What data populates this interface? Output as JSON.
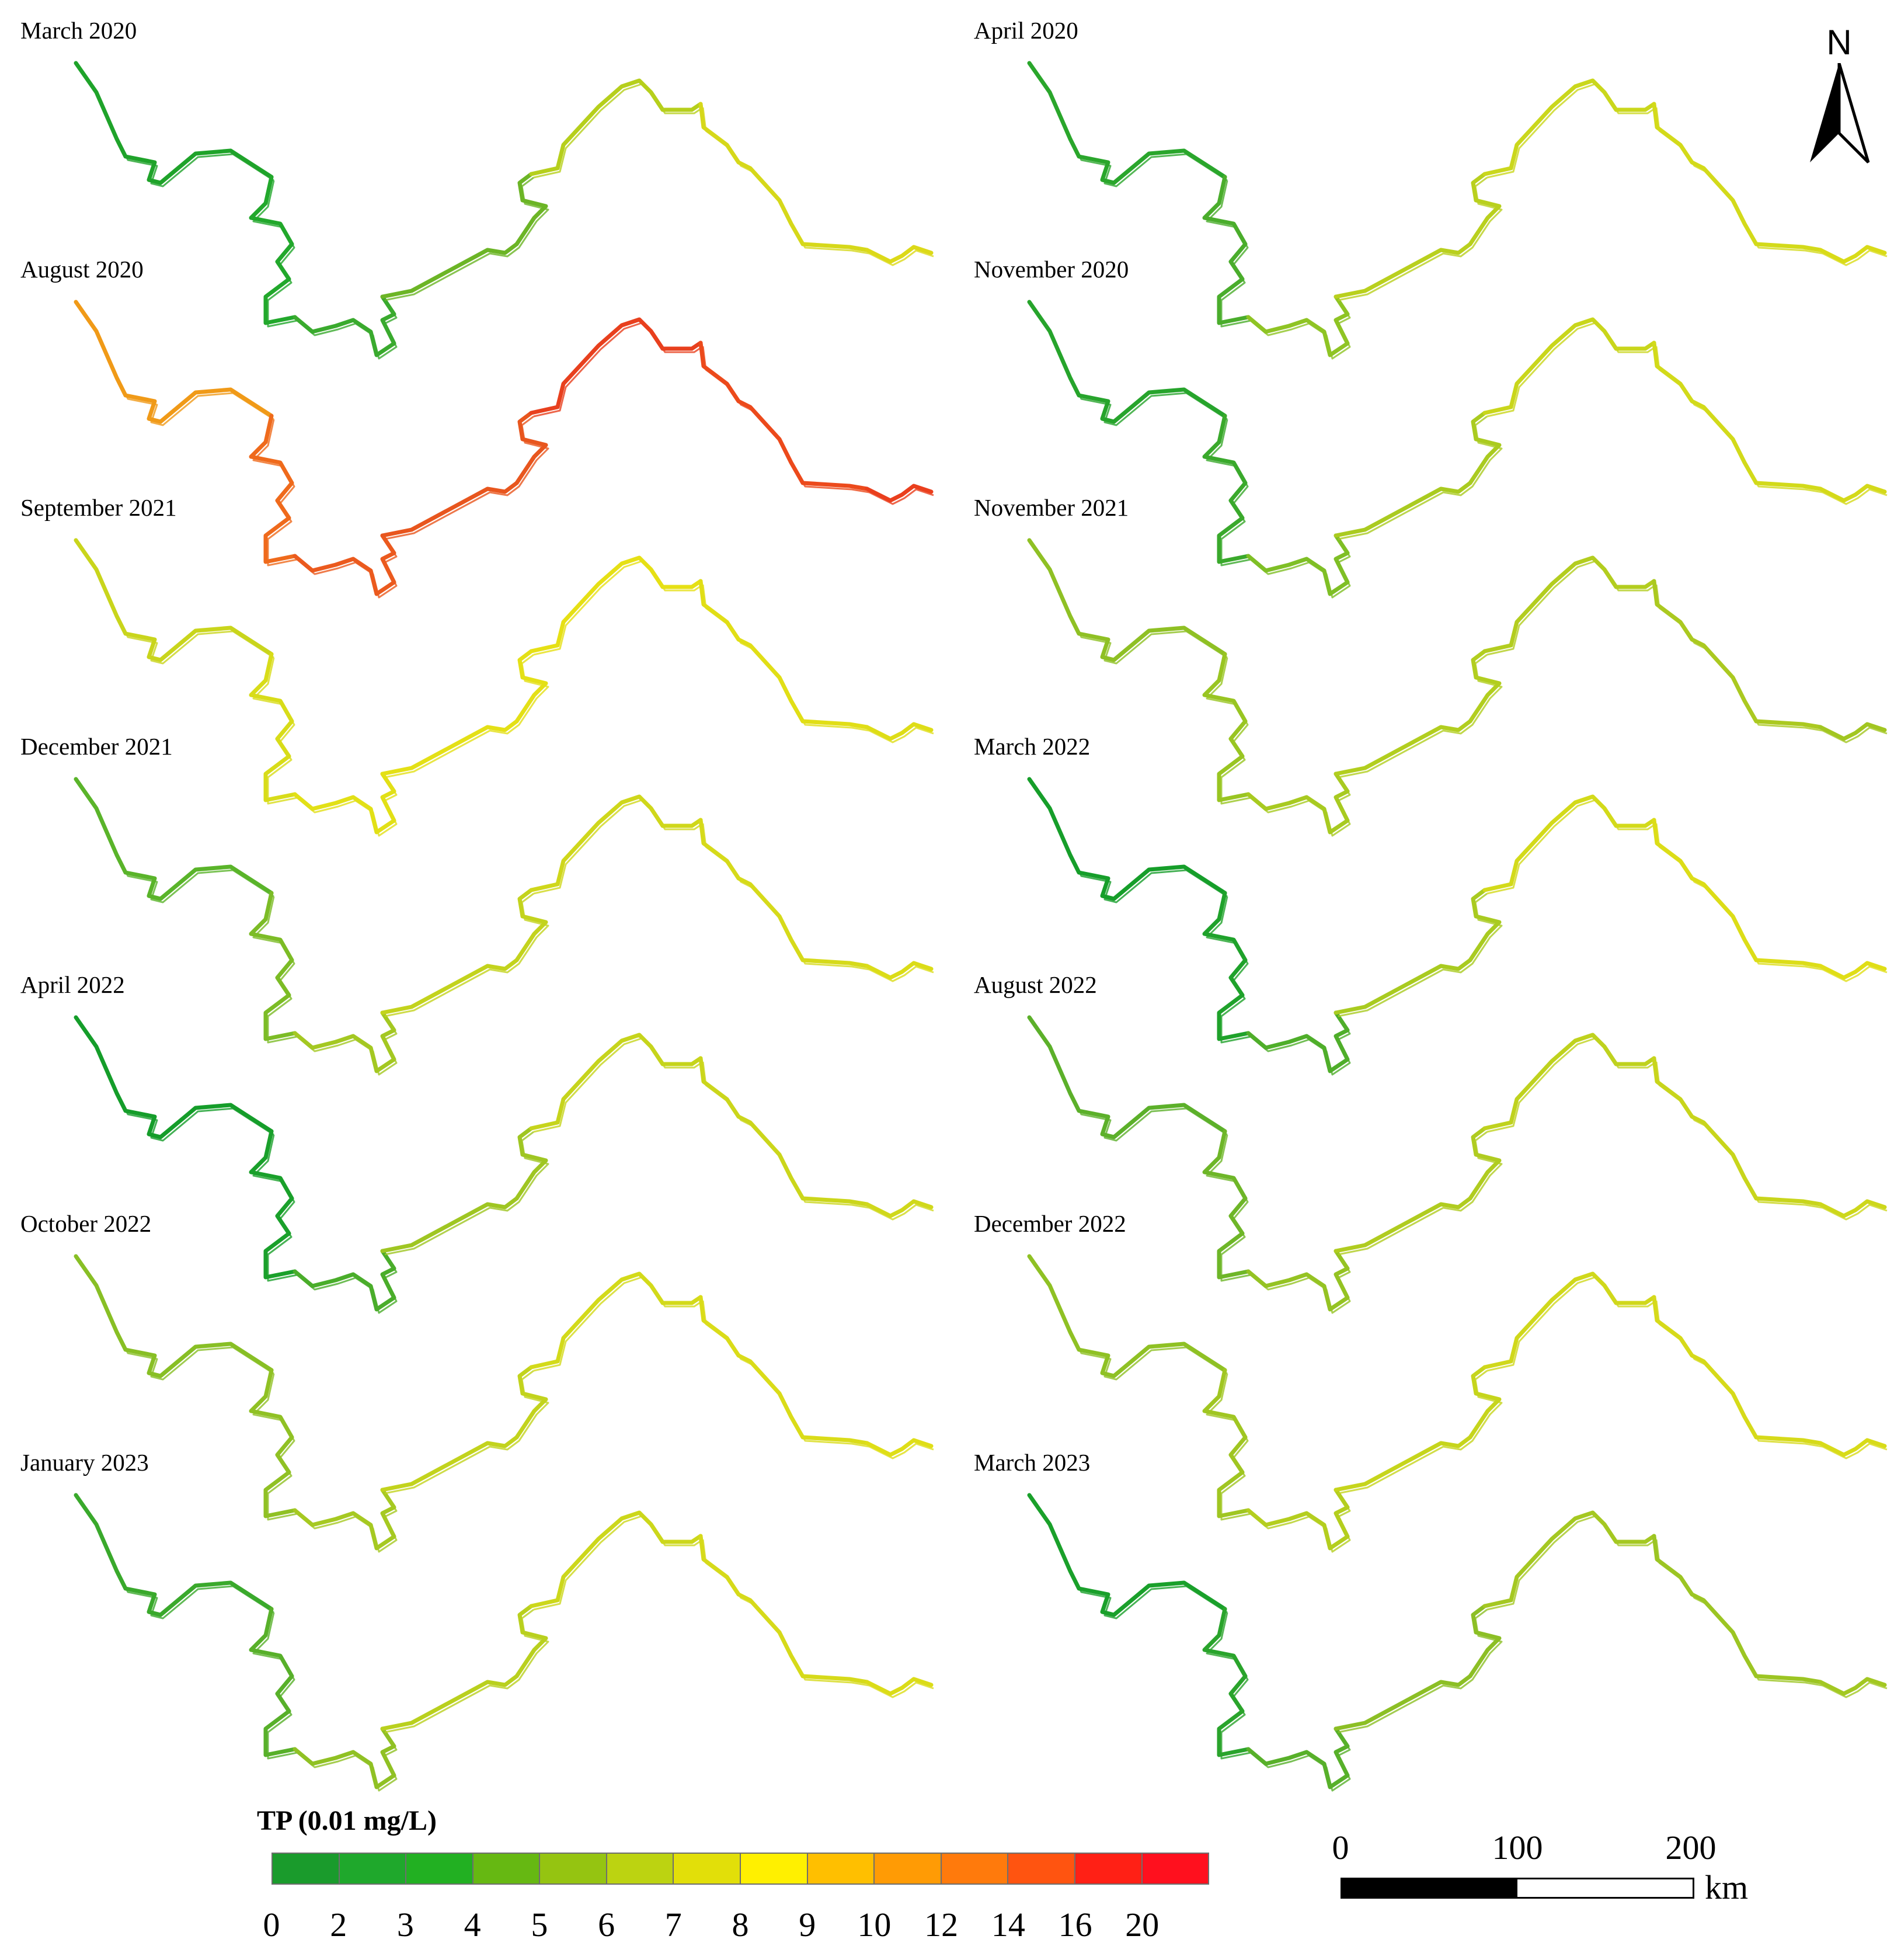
{
  "panels": [
    {
      "label": "March 2020",
      "colors": [
        "#1fa32a",
        "#22a82c",
        "#3aaa2e",
        "#6cb526",
        "#b6cf1c",
        "#d6d81a",
        "#dcd918"
      ]
    },
    {
      "label": "April 2020",
      "colors": [
        "#2aa62c",
        "#4aad2c",
        "#8fc424",
        "#b9d01e",
        "#cad71c",
        "#d3da1a",
        "#d9db18"
      ]
    },
    {
      "label": "August 2020",
      "colors": [
        "#f09a18",
        "#ef6a1c",
        "#eb5a1e",
        "#e8561e",
        "#e8401e",
        "#ec4a1c",
        "#ea3f1d"
      ]
    },
    {
      "label": "November 2020",
      "colors": [
        "#27a42c",
        "#3aa92c",
        "#7fbf26",
        "#aacb20",
        "#c9d61b",
        "#d2da1a",
        "#d4d91a"
      ]
    },
    {
      "label": "September 2021",
      "colors": [
        "#c9d51c",
        "#d8dc19",
        "#e2e016",
        "#e4e016",
        "#e6e015",
        "#e1de16",
        "#dedd17"
      ]
    },
    {
      "label": "November 2021",
      "colors": [
        "#8fc024",
        "#99c522",
        "#a8ca21",
        "#b2ce1f",
        "#b3cd1f",
        "#abc920",
        "#a2c621"
      ]
    },
    {
      "label": "December 2021",
      "colors": [
        "#5ab42a",
        "#7cbc26",
        "#a4c822",
        "#c3d31d",
        "#cfd71b",
        "#d6da1a",
        "#dbdc18"
      ]
    },
    {
      "label": "March 2022",
      "colors": [
        "#169e2a",
        "#1fa22b",
        "#4fae2a",
        "#a9cb20",
        "#d3da1a",
        "#dcdd18",
        "#e0de17"
      ]
    },
    {
      "label": "April 2022",
      "colors": [
        "#159d2a",
        "#1aa02b",
        "#4aad2b",
        "#9fc622",
        "#c6d41c",
        "#cbd61b",
        "#d0d81b"
      ]
    },
    {
      "label": "August 2022",
      "colors": [
        "#5cb02a",
        "#6eb628",
        "#95c323",
        "#b0cc20",
        "#bfd21e",
        "#c8d51c",
        "#cdd71b"
      ]
    },
    {
      "label": "October 2022",
      "colors": [
        "#88bf25",
        "#90c124",
        "#a6c922",
        "#c2d31d",
        "#d3da1a",
        "#dadc19",
        "#dfde17"
      ]
    },
    {
      "label": "December 2022",
      "colors": [
        "#8fc124",
        "#a0c622",
        "#b4ce1f",
        "#c6d51c",
        "#d0d81b",
        "#d6da1a",
        "#d8db19"
      ]
    },
    {
      "label": "January 2023",
      "colors": [
        "#3aa92c",
        "#58b02a",
        "#90c124",
        "#b9d01e",
        "#ccd71b",
        "#d6da1a",
        "#dbdc18"
      ]
    },
    {
      "label": "March 2023",
      "colors": [
        "#1aa02b",
        "#2aa42c",
        "#58b02a",
        "#8cbf25",
        "#a5c822",
        "#9cc523",
        "#a3c822"
      ]
    }
  ],
  "legend": {
    "title": "TP (0.01 mg/L)",
    "colors": [
      "#1a9b2c",
      "#1fa82c",
      "#22b022",
      "#66b812",
      "#95c411",
      "#bcd311",
      "#e2df09",
      "#fff000",
      "#ffbf00",
      "#ff9b05",
      "#ff7a0c",
      "#ff5410",
      "#ff2015",
      "#ff101e"
    ],
    "ticks": [
      "0",
      "2",
      "3",
      "4",
      "5",
      "6",
      "7",
      "8",
      "9",
      "10",
      "12",
      "14",
      "16",
      "20"
    ]
  },
  "scalebar": {
    "ticks": [
      "0",
      "100",
      "200"
    ],
    "unit": "km"
  },
  "north": "N"
}
